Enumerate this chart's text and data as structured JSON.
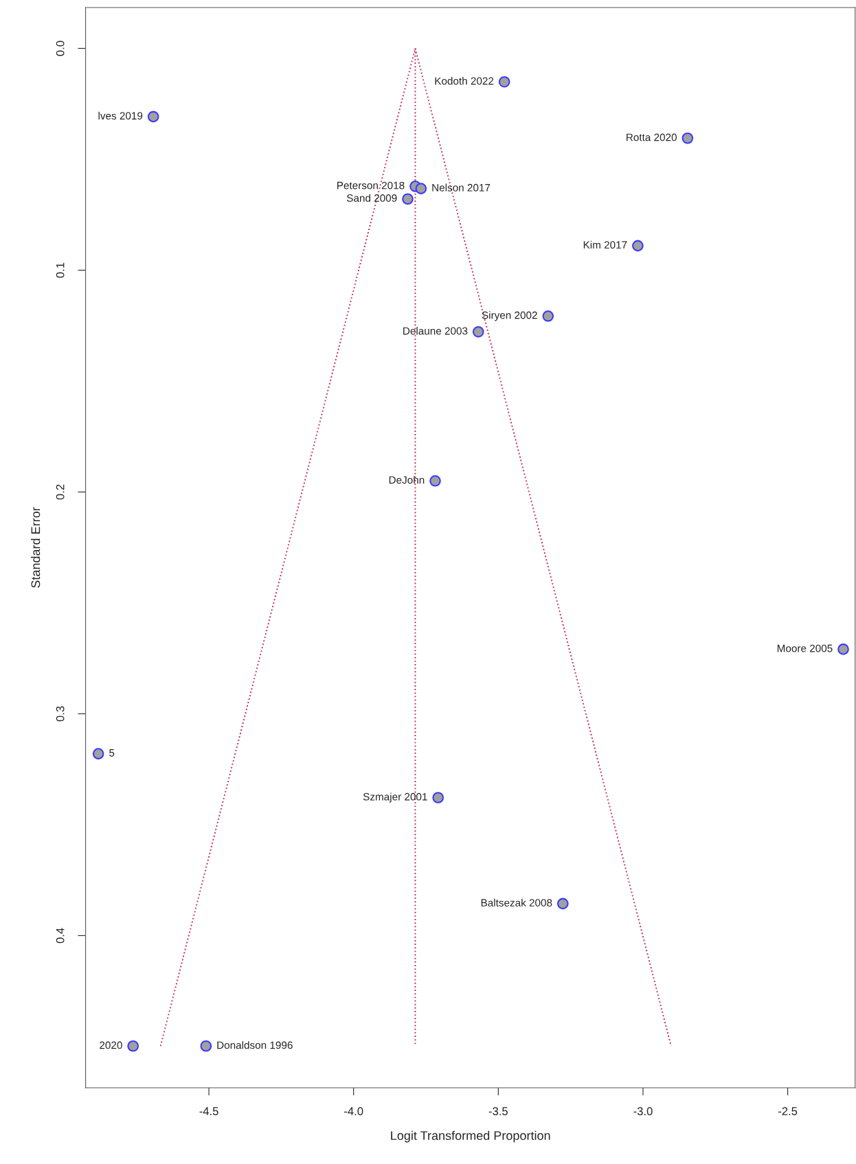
{
  "chart_data": {
    "type": "scatter",
    "xlabel": "Logit Transformed Proportion",
    "ylabel": "Standard Error",
    "xlim": [
      -4.926,
      -2.267
    ],
    "ylim": [
      0.4686,
      -0.0184
    ],
    "xticks": [
      -4.5,
      {
        "value": -4.0,
        "label": "-4.0"
      },
      -3.5,
      {
        "value": -3.0,
        "label": "-3.0"
      },
      -2.5
    ],
    "yticks": [
      {
        "value": 0.0,
        "label": "0.0"
      },
      0.1,
      0.2,
      0.3,
      0.4
    ],
    "grid": false,
    "legend": false,
    "marker": "circle",
    "series": [
      {
        "color": "#a0a0a0",
        "x": [
          -3.479,
          -4.692,
          -2.846,
          -3.787,
          -3.767,
          -3.813,
          -3.018,
          -3.328,
          -3.569,
          -3.718,
          -2.308,
          -4.882,
          -3.708,
          -3.277,
          -4.762,
          -4.51
        ],
        "values": [
          0.0151,
          0.0308,
          0.0405,
          0.0622,
          0.0632,
          0.0679,
          0.089,
          0.1207,
          0.1278,
          0.195,
          0.2709,
          0.318,
          0.3378,
          0.3856,
          0.4498,
          0.4498
        ]
      },
      {
        "type": "line",
        "color": "#c0305a",
        "line_style": "dotted",
        "marker": "none",
        "x": [
          -4.667,
          -3.787,
          -2.903
        ],
        "values": [
          0.4498,
          0.0,
          0.4498
        ]
      },
      {
        "type": "line",
        "color": "#c0305a",
        "line_style": "dotted",
        "marker": "none",
        "x": [
          -3.787,
          -3.787
        ],
        "values": [
          0.0,
          0.4498
        ]
      }
    ],
    "annotations": [
      {
        "text": "Kodoth 2022",
        "x": -3.479,
        "y": 0.0151
      },
      {
        "text": "lves 2019",
        "x": -4.692,
        "y": 0.0308
      },
      {
        "text": "Rotta 2020",
        "x": -2.846,
        "y": 0.0405
      },
      {
        "text": "Peterson 2018",
        "x": -3.787,
        "y": 0.0622
      },
      {
        "text": "Nelson 2017",
        "x": -3.767,
        "y": 0.0632
      },
      {
        "text": "Sand 2009",
        "x": -3.813,
        "y": 0.0679
      },
      {
        "text": "Kim 2017",
        "x": -3.018,
        "y": 0.089
      },
      {
        "text": "Siryen 2002",
        "x": -3.328,
        "y": 0.1207
      },
      {
        "text": "Delaune 2003",
        "x": -3.569,
        "y": 0.1278
      },
      {
        "text": "DeJohn",
        "x": -3.718,
        "y": 0.195
      },
      {
        "text": "Moore 2005",
        "x": -2.308,
        "y": 0.2709
      },
      {
        "text": "5",
        "x": -4.882,
        "y": 0.318
      },
      {
        "text": "Szmajer 2001",
        "x": -3.708,
        "y": 0.3378
      },
      {
        "text": "Baltsezak 2008",
        "x": -3.277,
        "y": 0.3856
      },
      {
        "text": "2020",
        "x": -4.762,
        "y": 0.4498
      },
      {
        "text": "Donaldson 1996",
        "x": -4.51,
        "y": 0.4498
      }
    ]
  }
}
